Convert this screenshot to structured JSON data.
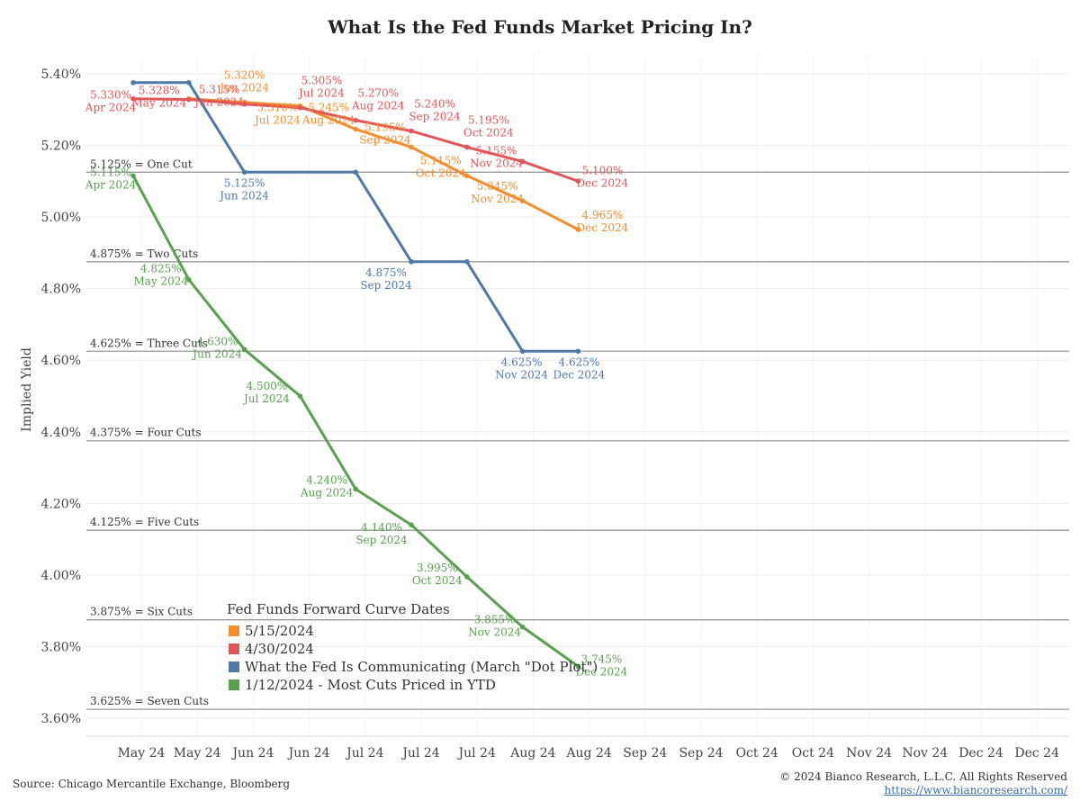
{
  "title": "What Is the Fed Funds Market Pricing In?",
  "footer": {
    "source": "Source: Chicago Mercantile Exchange, Bloomberg",
    "copyright": "© 2024 Bianco Research, L.L.C. All Rights Reserved",
    "url": "https://www.biancoresearch.com/"
  },
  "chart_data": {
    "type": "line",
    "title": "What Is the Fed Funds Market Pricing In?",
    "ylabel": "Implied Yield",
    "xlabel": "",
    "ylim": [
      3.55,
      5.45
    ],
    "y_ticks": [
      3.6,
      3.8,
      4.0,
      4.2,
      4.4,
      4.6,
      4.8,
      5.0,
      5.2,
      5.4
    ],
    "y_tick_labels": [
      "3.60%",
      "3.80%",
      "4.00%",
      "4.20%",
      "4.40%",
      "4.60%",
      "4.80%",
      "5.00%",
      "5.20%",
      "5.40%"
    ],
    "x_tick_labels": [
      "May 24",
      "May 24",
      "Jun 24",
      "Jun 24",
      "Jul 24",
      "Jul 24",
      "Jul 24",
      "Aug 24",
      "Aug 24",
      "Sep 24",
      "Sep 24",
      "Oct 24",
      "Oct 24",
      "Nov 24",
      "Nov 24",
      "Dec 24",
      "Dec 24"
    ],
    "reference_lines": [
      {
        "value": 5.125,
        "label": "5.125% = One Cut"
      },
      {
        "value": 4.875,
        "label": "4.875% = Two Cuts"
      },
      {
        "value": 4.625,
        "label": "4.625% = Three Cuts"
      },
      {
        "value": 4.375,
        "label": "4.375% = Four Cuts"
      },
      {
        "value": 4.125,
        "label": "4.125% = Five Cuts"
      },
      {
        "value": 3.875,
        "label": "3.875% = Six Cuts"
      },
      {
        "value": 3.625,
        "label": "3.625% = Seven Cuts"
      }
    ],
    "legend": {
      "title": "Fed Funds Forward Curve Dates",
      "placement": "bottom-left"
    },
    "series": [
      {
        "name": "5/15/2024",
        "color": "#f28e2b",
        "points": [
          {
            "x": 2,
            "y": 5.33,
            "label": ""
          },
          {
            "x": 4,
            "y": 5.32,
            "label": "5.320%",
            "sub": "Jun 2024"
          },
          {
            "x": 6,
            "y": 5.31,
            "label": "5.310%",
            "sub": "Jul 2024"
          },
          {
            "x": 8,
            "y": 5.245,
            "label": "5.245%",
            "sub": "Aug 2024"
          },
          {
            "x": 10,
            "y": 5.195,
            "label": "5.195%",
            "sub": "Sep 2024"
          },
          {
            "x": 12,
            "y": 5.115,
            "label": "5.115%",
            "sub": "Oct 2024"
          },
          {
            "x": 14,
            "y": 5.045,
            "label": "5.045%",
            "sub": "Nov 2024"
          },
          {
            "x": 16,
            "y": 4.965,
            "label": "4.965%",
            "sub": "Dec 2024"
          }
        ]
      },
      {
        "name": "4/30/2024",
        "color": "#e15759",
        "points": [
          {
            "x": 0,
            "y": 5.33,
            "label": "5.330%",
            "sub": "Apr 2024"
          },
          {
            "x": 2,
            "y": 5.328,
            "label": "5.328%",
            "sub": "May 2024"
          },
          {
            "x": 4,
            "y": 5.315,
            "label": "5.315%",
            "sub": "Jun 2024"
          },
          {
            "x": 6,
            "y": 5.305,
            "label": "5.305%",
            "sub": "Jul 2024"
          },
          {
            "x": 8,
            "y": 5.27,
            "label": "5.270%",
            "sub": "Aug 2024"
          },
          {
            "x": 10,
            "y": 5.24,
            "label": "5.240%",
            "sub": "Sep 2024"
          },
          {
            "x": 12,
            "y": 5.195,
            "label": "5.195%",
            "sub": "Oct 2024"
          },
          {
            "x": 14,
            "y": 5.155,
            "label": "5.155%",
            "sub": "Nov 2024"
          },
          {
            "x": 16,
            "y": 5.1,
            "label": "5.100%",
            "sub": "Dec 2024"
          }
        ]
      },
      {
        "name": "What the Fed Is Communicating (March \"Dot Plot\")",
        "color": "#4e79a7",
        "points": [
          {
            "x": 0,
            "y": 5.375,
            "label": ""
          },
          {
            "x": 2,
            "y": 5.375,
            "label": ""
          },
          {
            "x": 4,
            "y": 5.125,
            "label": "5.125%",
            "sub": "Jun 2024"
          },
          {
            "x": 8,
            "y": 5.125,
            "label": ""
          },
          {
            "x": 10,
            "y": 4.875,
            "label": "4.875%",
            "sub": "Sep 2024"
          },
          {
            "x": 12,
            "y": 4.875,
            "label": ""
          },
          {
            "x": 14,
            "y": 4.625,
            "label": "4.625%",
            "sub": "Nov 2024"
          },
          {
            "x": 16,
            "y": 4.625,
            "label": "4.625%",
            "sub": "Dec 2024"
          }
        ]
      },
      {
        "name": "1/12/2024 - Most Cuts Priced in YTD",
        "color": "#59a14f",
        "points": [
          {
            "x": 0,
            "y": 5.115,
            "label": "5.115%",
            "sub": "Apr 2024"
          },
          {
            "x": 2,
            "y": 4.825,
            "label": "4.825%",
            "sub": "May 2024"
          },
          {
            "x": 4,
            "y": 4.63,
            "label": "4.630%",
            "sub": "Jun 2024"
          },
          {
            "x": 6,
            "y": 4.5,
            "label": "4.500%",
            "sub": "Jul 2024"
          },
          {
            "x": 8,
            "y": 4.24,
            "label": "4.240%",
            "sub": "Aug 2024"
          },
          {
            "x": 10,
            "y": 4.14,
            "label": "4.140%",
            "sub": "Sep 2024"
          },
          {
            "x": 12,
            "y": 3.995,
            "label": "3.995%",
            "sub": "Oct 2024"
          },
          {
            "x": 14,
            "y": 3.855,
            "label": "3.855%",
            "sub": "Nov 2024"
          },
          {
            "x": 16,
            "y": 3.745,
            "label": "3.745%",
            "sub": "Dec 2024"
          }
        ]
      }
    ]
  }
}
